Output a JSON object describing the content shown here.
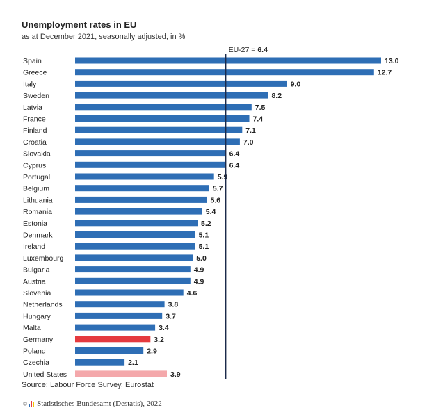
{
  "title": "Unemployment rates in EU",
  "subtitle": "as at December 2021, seasonally adjusted, in %",
  "source": "Source: Labour Force Survey, Eurostat",
  "footer": "Statistisches Bundesamt (Destatis), 2022",
  "footer_cc": "©",
  "colors": {
    "bar": "#2e6eb5",
    "highlight": "#e53a3f",
    "us": "#f4a8ab",
    "reference_line": "#1b2a4a",
    "logo_blue": "#2e6eb5",
    "logo_red": "#e53a3f",
    "logo_yellow": "#f2c300"
  },
  "chart_data": {
    "type": "bar",
    "orientation": "horizontal",
    "title": "Unemployment rates in EU",
    "subtitle": "as at December 2021, seasonally adjusted, in %",
    "categories": [
      "Spain",
      "Greece",
      "Italy",
      "Sweden",
      "Latvia",
      "France",
      "Finland",
      "Croatia",
      "Slovakia",
      "Cyprus",
      "Portugal",
      "Belgium",
      "Lithuania",
      "Romania",
      "Estonia",
      "Denmark",
      "Ireland",
      "Luxembourg",
      "Bulgaria",
      "Austria",
      "Slovenia",
      "Netherlands",
      "Hungary",
      "Malta",
      "Germany",
      "Poland",
      "Czechia",
      "United States"
    ],
    "values": [
      13.0,
      12.7,
      9.0,
      8.2,
      7.5,
      7.4,
      7.1,
      7.0,
      6.4,
      6.4,
      5.9,
      5.7,
      5.6,
      5.4,
      5.2,
      5.1,
      5.1,
      5.0,
      4.9,
      4.9,
      4.6,
      3.8,
      3.7,
      3.4,
      3.2,
      2.9,
      2.1,
      3.9
    ],
    "value_labels": [
      "13.0",
      "12.7",
      "9.0",
      "8.2",
      "7.5",
      "7.4",
      "7.1",
      "7.0",
      "6.4",
      "6.4",
      "5.9",
      "5.7",
      "5.6",
      "5.4",
      "5.2",
      "5.1",
      "5.1",
      "5.0",
      "4.9",
      "4.9",
      "4.6",
      "3.8",
      "3.7",
      "3.4",
      "3.2",
      "2.9",
      "2.1",
      "3.9"
    ],
    "highlight": {
      "Germany": "highlight",
      "United States": "us"
    },
    "reference_line": {
      "label_prefix": "EU-27 = ",
      "label_value": "6.4",
      "value": 6.4
    },
    "xlim": [
      0,
      13.0
    ],
    "grid": false,
    "legend": "none"
  }
}
